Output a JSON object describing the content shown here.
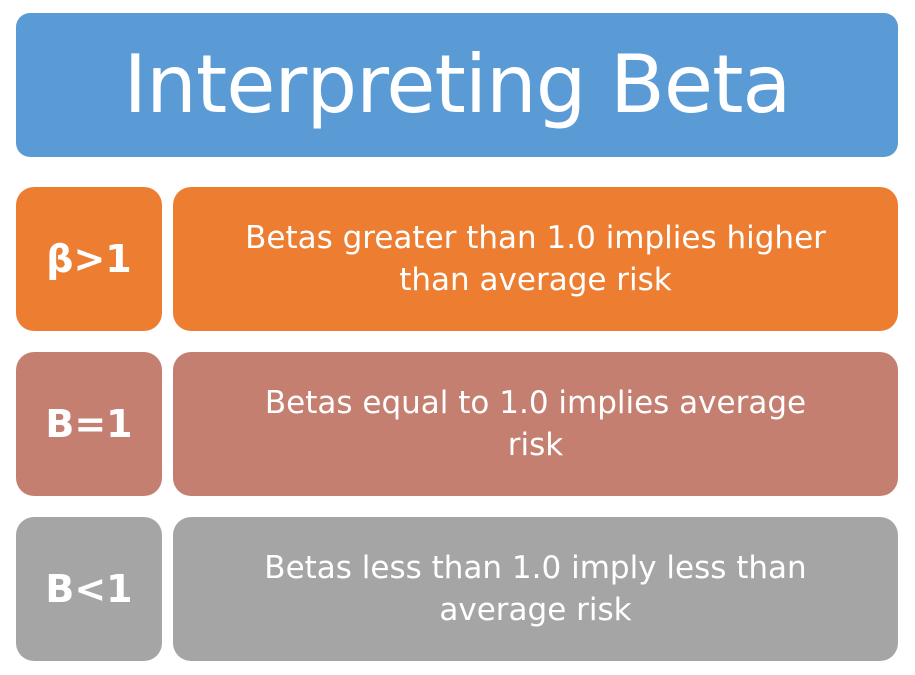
{
  "title": "Interpreting Beta",
  "colors": {
    "title_bg": "#5b9bd5",
    "row1_bg": "#ed7d31",
    "row2_bg": "#c47f70",
    "row3_bg": "#a5a5a5",
    "text": "#ffffff"
  },
  "rows": [
    {
      "label": "β>1",
      "description": "Betas greater than 1.0 implies higher than average risk"
    },
    {
      "label": "B=1",
      "description": "Betas equal to 1.0 implies average risk"
    },
    {
      "label": "B<1",
      "description": "Betas less than 1.0 imply less than average risk"
    }
  ]
}
